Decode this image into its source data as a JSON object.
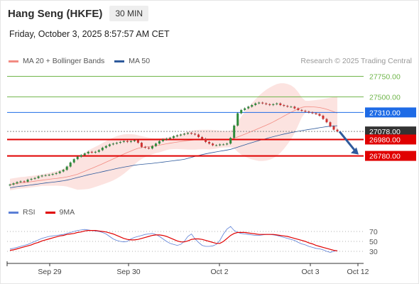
{
  "header": {
    "title": "Hang Seng (HKFE)",
    "interval": "30 MIN"
  },
  "datetime": "Friday, October 3, 2025 8:57:57 AM CET",
  "legend": [
    {
      "label": "MA 20 + Bollinger Bands",
      "color": "#f28b82"
    },
    {
      "label": "MA 50",
      "color": "#2e5a9c"
    }
  ],
  "credit": "Research © 2025 Trading Central",
  "rsi_legend": [
    {
      "label": "RSI",
      "color": "#5b7fd6"
    },
    {
      "label": "9MA",
      "color": "#e00000"
    }
  ],
  "chart_data": [
    {
      "type": "candlestick",
      "title": "",
      "ylim": [
        26300,
        27850
      ],
      "levels": [
        {
          "value": 27750.0,
          "label": "27750.00",
          "style": "target",
          "color": "#6fb54a"
        },
        {
          "value": 27500.0,
          "label": "27500.00",
          "style": "target",
          "color": "#6fb54a"
        },
        {
          "value": 27310.0,
          "label": "27310.00",
          "style": "pivot",
          "color": "#1e6be6"
        },
        {
          "value": 27078.0,
          "label": "27078.00",
          "style": "last",
          "color": "#333333"
        },
        {
          "value": 26980.0,
          "label": "26980.00",
          "style": "support",
          "color": "#e00000"
        },
        {
          "value": 26780.0,
          "label": "26780.00",
          "style": "support",
          "color": "#e00000"
        }
      ],
      "x_ticks": [
        "Sep 29",
        "Sep 30",
        "Oct 2",
        "Oct 3",
        "Oct 12"
      ],
      "close": [
        26430,
        26445,
        26460,
        26470,
        26465,
        26490,
        26500,
        26510,
        26530,
        26540,
        26545,
        26550,
        26560,
        26570,
        26590,
        26610,
        26650,
        26700,
        26740,
        26770,
        26790,
        26810,
        26830,
        26820,
        26830,
        26850,
        26880,
        26900,
        26920,
        26930,
        26940,
        26950,
        26960,
        26950,
        26960,
        26970,
        26940,
        26890,
        26880,
        26870,
        26900,
        26930,
        26960,
        26980,
        26990,
        27000,
        27020,
        27030,
        27040,
        27050,
        27060,
        27050,
        27040,
        27010,
        26990,
        26950,
        26930,
        26910,
        26910,
        26920,
        26920,
        26930,
        27000,
        27150,
        27300,
        27340,
        27360,
        27380,
        27400,
        27420,
        27430,
        27420,
        27410,
        27400,
        27410,
        27420,
        27400,
        27390,
        27380,
        27380,
        27360,
        27340,
        27330,
        27320,
        27310,
        27300,
        27290,
        27270,
        27230,
        27190,
        27140,
        27100,
        27078
      ],
      "ma20_label": "MA 20",
      "ma50_label": "MA 50",
      "arrow": {
        "from": 27078,
        "to": 26780,
        "direction": "down"
      }
    },
    {
      "type": "line",
      "title": "",
      "ylim": [
        10,
        90
      ],
      "y_ticks": [
        70,
        50,
        30
      ],
      "series": [
        {
          "name": "RSI",
          "color": "#5b7fd6",
          "values": [
            35,
            36,
            38,
            40,
            42,
            44,
            47,
            50,
            53,
            56,
            58,
            60,
            61,
            62,
            63,
            64,
            66,
            68,
            70,
            72,
            73,
            74,
            73,
            72,
            71,
            70,
            68,
            65,
            60,
            55,
            52,
            50,
            49,
            50,
            55,
            58,
            60,
            62,
            64,
            65,
            66,
            64,
            60,
            55,
            50,
            46,
            44,
            42,
            44,
            50,
            60,
            65,
            55,
            48,
            42,
            40,
            40,
            41,
            44,
            52,
            65,
            75,
            80,
            72,
            68,
            66,
            65,
            64,
            63,
            62,
            62,
            63,
            64,
            64,
            63,
            62,
            60,
            58,
            56,
            54,
            52,
            48,
            45,
            43,
            40,
            38,
            36,
            35,
            33,
            30,
            28,
            30,
            32
          ]
        },
        {
          "name": "9MA",
          "color": "#e00000",
          "values": [
            32,
            33,
            35,
            37,
            39,
            41,
            43,
            46,
            48,
            51,
            53,
            55,
            57,
            59,
            61,
            62,
            64,
            65,
            66,
            68,
            69,
            71,
            72,
            72,
            72,
            71,
            70,
            69,
            67,
            65,
            62,
            59,
            56,
            54,
            53,
            53,
            54,
            56,
            58,
            60,
            62,
            63,
            63,
            62,
            60,
            57,
            54,
            51,
            49,
            49,
            51,
            54,
            55,
            55,
            54,
            52,
            50,
            48,
            46,
            46,
            50,
            56,
            62,
            66,
            68,
            68,
            68,
            67,
            66,
            65,
            64,
            64,
            64,
            64,
            64,
            63,
            62,
            61,
            60,
            58,
            56,
            54,
            52,
            50,
            47,
            45,
            42,
            40,
            38,
            36,
            34,
            32,
            31
          ]
        }
      ]
    }
  ]
}
